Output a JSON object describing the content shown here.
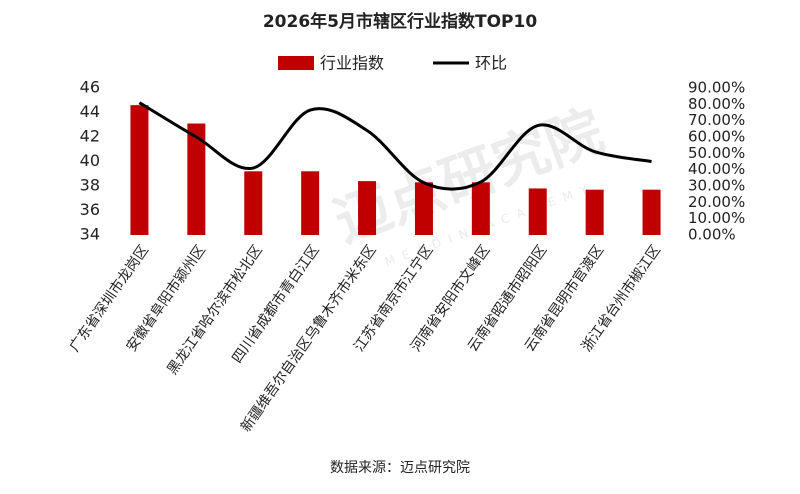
{
  "chart_data": {
    "type": "bar-line",
    "title": "2026年5月市辖区行业指数TOP10",
    "categories": [
      "广东省深圳市龙岗区",
      "安徽省阜阳市颍州区",
      "黑龙江省哈尔滨市松北区",
      "四川省成都市青白江区",
      "新疆维吾尔自治区乌鲁木齐市米东区",
      "江苏省南京市江宁区",
      "河南省安阳市文峰区",
      "云南省昭通市昭阳区",
      "云南省昆明市官渡区",
      "浙江省台州市椒江区"
    ],
    "series": [
      {
        "name": "行业指数",
        "color": "#c00000",
        "type": "bar",
        "values": [
          44.6,
          43.1,
          39.2,
          39.2,
          38.4,
          38.3,
          38.3,
          37.8,
          37.7,
          37.7
        ]
      },
      {
        "name": "环比",
        "color": "#000000",
        "type": "line",
        "axis": "y2",
        "values": [
          81,
          60,
          41,
          76.5,
          64,
          32,
          32.5,
          67,
          51,
          45
        ]
      }
    ],
    "ylim": [
      34,
      46
    ],
    "yticks": [
      34,
      36,
      38,
      40,
      42,
      44,
      46
    ],
    "y2lim": [
      0,
      90
    ],
    "y2ticks": [
      {
        "value": 0,
        "label": "0.00%"
      },
      {
        "value": 10,
        "label": "10.00%"
      },
      {
        "value": 20,
        "label": "20.00%"
      },
      {
        "value": 30,
        "label": "30.00%"
      },
      {
        "value": 40,
        "label": "40.00%"
      },
      {
        "value": 50,
        "label": "50.00%"
      },
      {
        "value": 60,
        "label": "60.00%"
      },
      {
        "value": 70,
        "label": "70.00%"
      },
      {
        "value": 80,
        "label": "80.00%"
      },
      {
        "value": 90,
        "label": "90.00%"
      }
    ],
    "source": "数据来源：迈点研究院",
    "watermark": "迈点研究院",
    "watermark_sub": "MEADIN ACADEMY"
  }
}
